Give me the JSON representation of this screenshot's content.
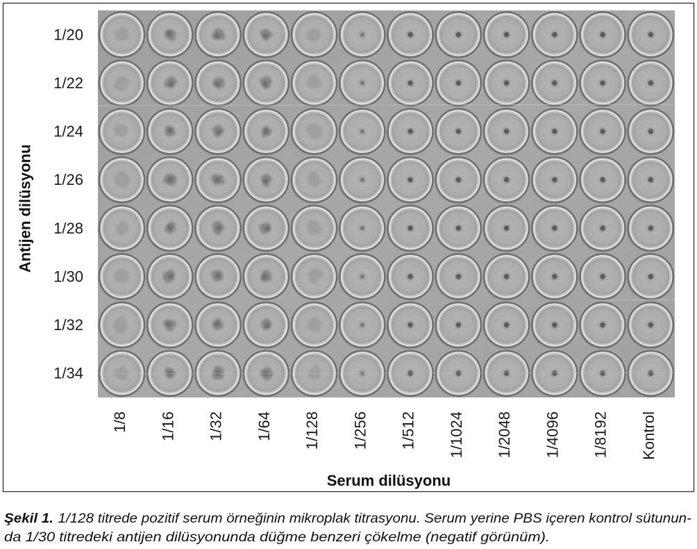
{
  "figure": {
    "row_axis_label": "Antijen dilüsyonu",
    "column_axis_label": "Serum dilüsyonu",
    "row_labels": [
      "1/20",
      "1/22",
      "1/24",
      "1/26",
      "1/28",
      "1/30",
      "1/32",
      "1/34"
    ],
    "column_labels": [
      "1/8",
      "1/16",
      "1/32",
      "1/64",
      "1/128",
      "1/256",
      "1/512",
      "1/1024",
      "1/2048",
      "1/4096",
      "1/8192",
      "Kontrol"
    ]
  },
  "caption": {
    "label": "Şekil 1.",
    "line1": "1/128 titrede pozitif serum örneğinin mikroplak titrasyonu. Serum yerine PBS içeren kontrol sütunun-",
    "line2": "da 1/30 titredeki antijen dilüsyonunda düğme benzeri çökelme (negatif görünüm)."
  }
}
